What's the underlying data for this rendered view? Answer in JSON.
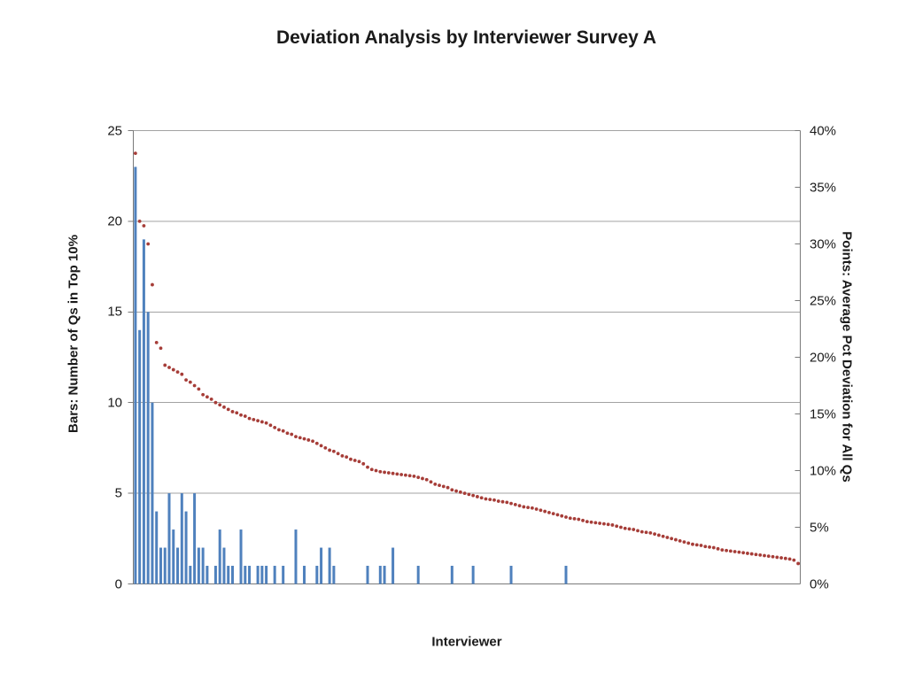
{
  "chart_data": {
    "type": "combo_bar_scatter",
    "title": "Deviation Analysis by Interviewer Survey A",
    "xlabel": "Interviewer",
    "n_categories": 158,
    "legend": "none",
    "grid": "horizontal gridlines at left-axis units 5,10,15,20,25",
    "left_axis": {
      "label": "Bars: Number of Qs in Top 10%",
      "ticks": [
        "0",
        "5",
        "10",
        "15",
        "20",
        "25"
      ],
      "tick_values": [
        0,
        5,
        10,
        15,
        20,
        25
      ],
      "ylim": [
        0,
        25
      ]
    },
    "right_axis": {
      "label": "Points: Average Pct Deviation for All Qs",
      "ticks": [
        "0%",
        "5%",
        "10%",
        "15%",
        "20%",
        "25%",
        "30%",
        "35%",
        "40%"
      ],
      "tick_values": [
        0,
        5,
        10,
        15,
        20,
        25,
        30,
        35,
        40
      ],
      "ylim": [
        0,
        40
      ]
    },
    "series": [
      {
        "name": "Bars: Number of Qs in Top 10%",
        "type": "bar",
        "axis": "left",
        "values": [
          23,
          14,
          19,
          15,
          10,
          4,
          2,
          2,
          5,
          3,
          2,
          5,
          4,
          1,
          5,
          2,
          2,
          1,
          0,
          1,
          3,
          2,
          1,
          1,
          0,
          3,
          1,
          1,
          0,
          1,
          1,
          1,
          0,
          1,
          0,
          1,
          0,
          0,
          3,
          0,
          1,
          0,
          0,
          1,
          2,
          0,
          2,
          1,
          0,
          0,
          0,
          0,
          0,
          0,
          0,
          1,
          0,
          0,
          1,
          1,
          0,
          2,
          0,
          0,
          0,
          0,
          0,
          1,
          0,
          0,
          0,
          0,
          0,
          0,
          0,
          1,
          0,
          0,
          0,
          0,
          1,
          0,
          0,
          0,
          0,
          0,
          0,
          0,
          0,
          1,
          0,
          0,
          0,
          0,
          0,
          0,
          0,
          0,
          0,
          0,
          0,
          0,
          1,
          0,
          0,
          0,
          0,
          0,
          0,
          0,
          0,
          0,
          0,
          0,
          0,
          0,
          0,
          0,
          0,
          0,
          0,
          0,
          0,
          0,
          0,
          0,
          0,
          0,
          0,
          0,
          0,
          0,
          0,
          0,
          0,
          0,
          0,
          0,
          0,
          0,
          0,
          0,
          0,
          0,
          0,
          0,
          0,
          0,
          0,
          0,
          0,
          0,
          0,
          0,
          0,
          0,
          0,
          0
        ]
      },
      {
        "name": "Points: Average Pct Deviation for All Qs",
        "type": "scatter",
        "axis": "right",
        "unit": "%",
        "values": [
          38.0,
          32.0,
          31.6,
          30.0,
          26.4,
          21.3,
          20.8,
          19.3,
          19.1,
          18.9,
          18.7,
          18.5,
          18.0,
          17.8,
          17.5,
          17.2,
          16.7,
          16.5,
          16.3,
          16.0,
          15.8,
          15.6,
          15.4,
          15.2,
          15.1,
          14.9,
          14.8,
          14.6,
          14.5,
          14.4,
          14.3,
          14.2,
          14.0,
          13.8,
          13.6,
          13.5,
          13.3,
          13.2,
          13.0,
          12.9,
          12.8,
          12.7,
          12.6,
          12.4,
          12.2,
          12.0,
          11.8,
          11.7,
          11.5,
          11.3,
          11.2,
          11.0,
          10.9,
          10.8,
          10.6,
          10.3,
          10.1,
          10.0,
          9.9,
          9.85,
          9.8,
          9.75,
          9.7,
          9.65,
          9.6,
          9.55,
          9.5,
          9.4,
          9.3,
          9.2,
          9.0,
          8.8,
          8.7,
          8.6,
          8.5,
          8.3,
          8.2,
          8.1,
          8.0,
          7.9,
          7.8,
          7.7,
          7.6,
          7.5,
          7.45,
          7.4,
          7.3,
          7.25,
          7.2,
          7.1,
          7.0,
          6.9,
          6.8,
          6.75,
          6.7,
          6.6,
          6.5,
          6.4,
          6.3,
          6.2,
          6.1,
          6.0,
          5.9,
          5.8,
          5.75,
          5.7,
          5.6,
          5.5,
          5.45,
          5.4,
          5.35,
          5.3,
          5.25,
          5.2,
          5.1,
          5.0,
          4.9,
          4.85,
          4.8,
          4.7,
          4.6,
          4.55,
          4.5,
          4.4,
          4.3,
          4.2,
          4.1,
          4.0,
          3.9,
          3.8,
          3.7,
          3.6,
          3.5,
          3.45,
          3.4,
          3.3,
          3.25,
          3.2,
          3.1,
          3.0,
          2.95,
          2.9,
          2.85,
          2.8,
          2.75,
          2.7,
          2.65,
          2.6,
          2.55,
          2.5,
          2.45,
          2.4,
          2.35,
          2.3,
          2.25,
          2.2,
          2.1,
          1.8
        ]
      }
    ]
  },
  "colors": {
    "bar": "#4f81bd",
    "point": "#a63d38",
    "gridline": "#a3a3a3",
    "axis": "#7a7a7a",
    "text": "#1a1a1a",
    "background": "#ffffff"
  }
}
